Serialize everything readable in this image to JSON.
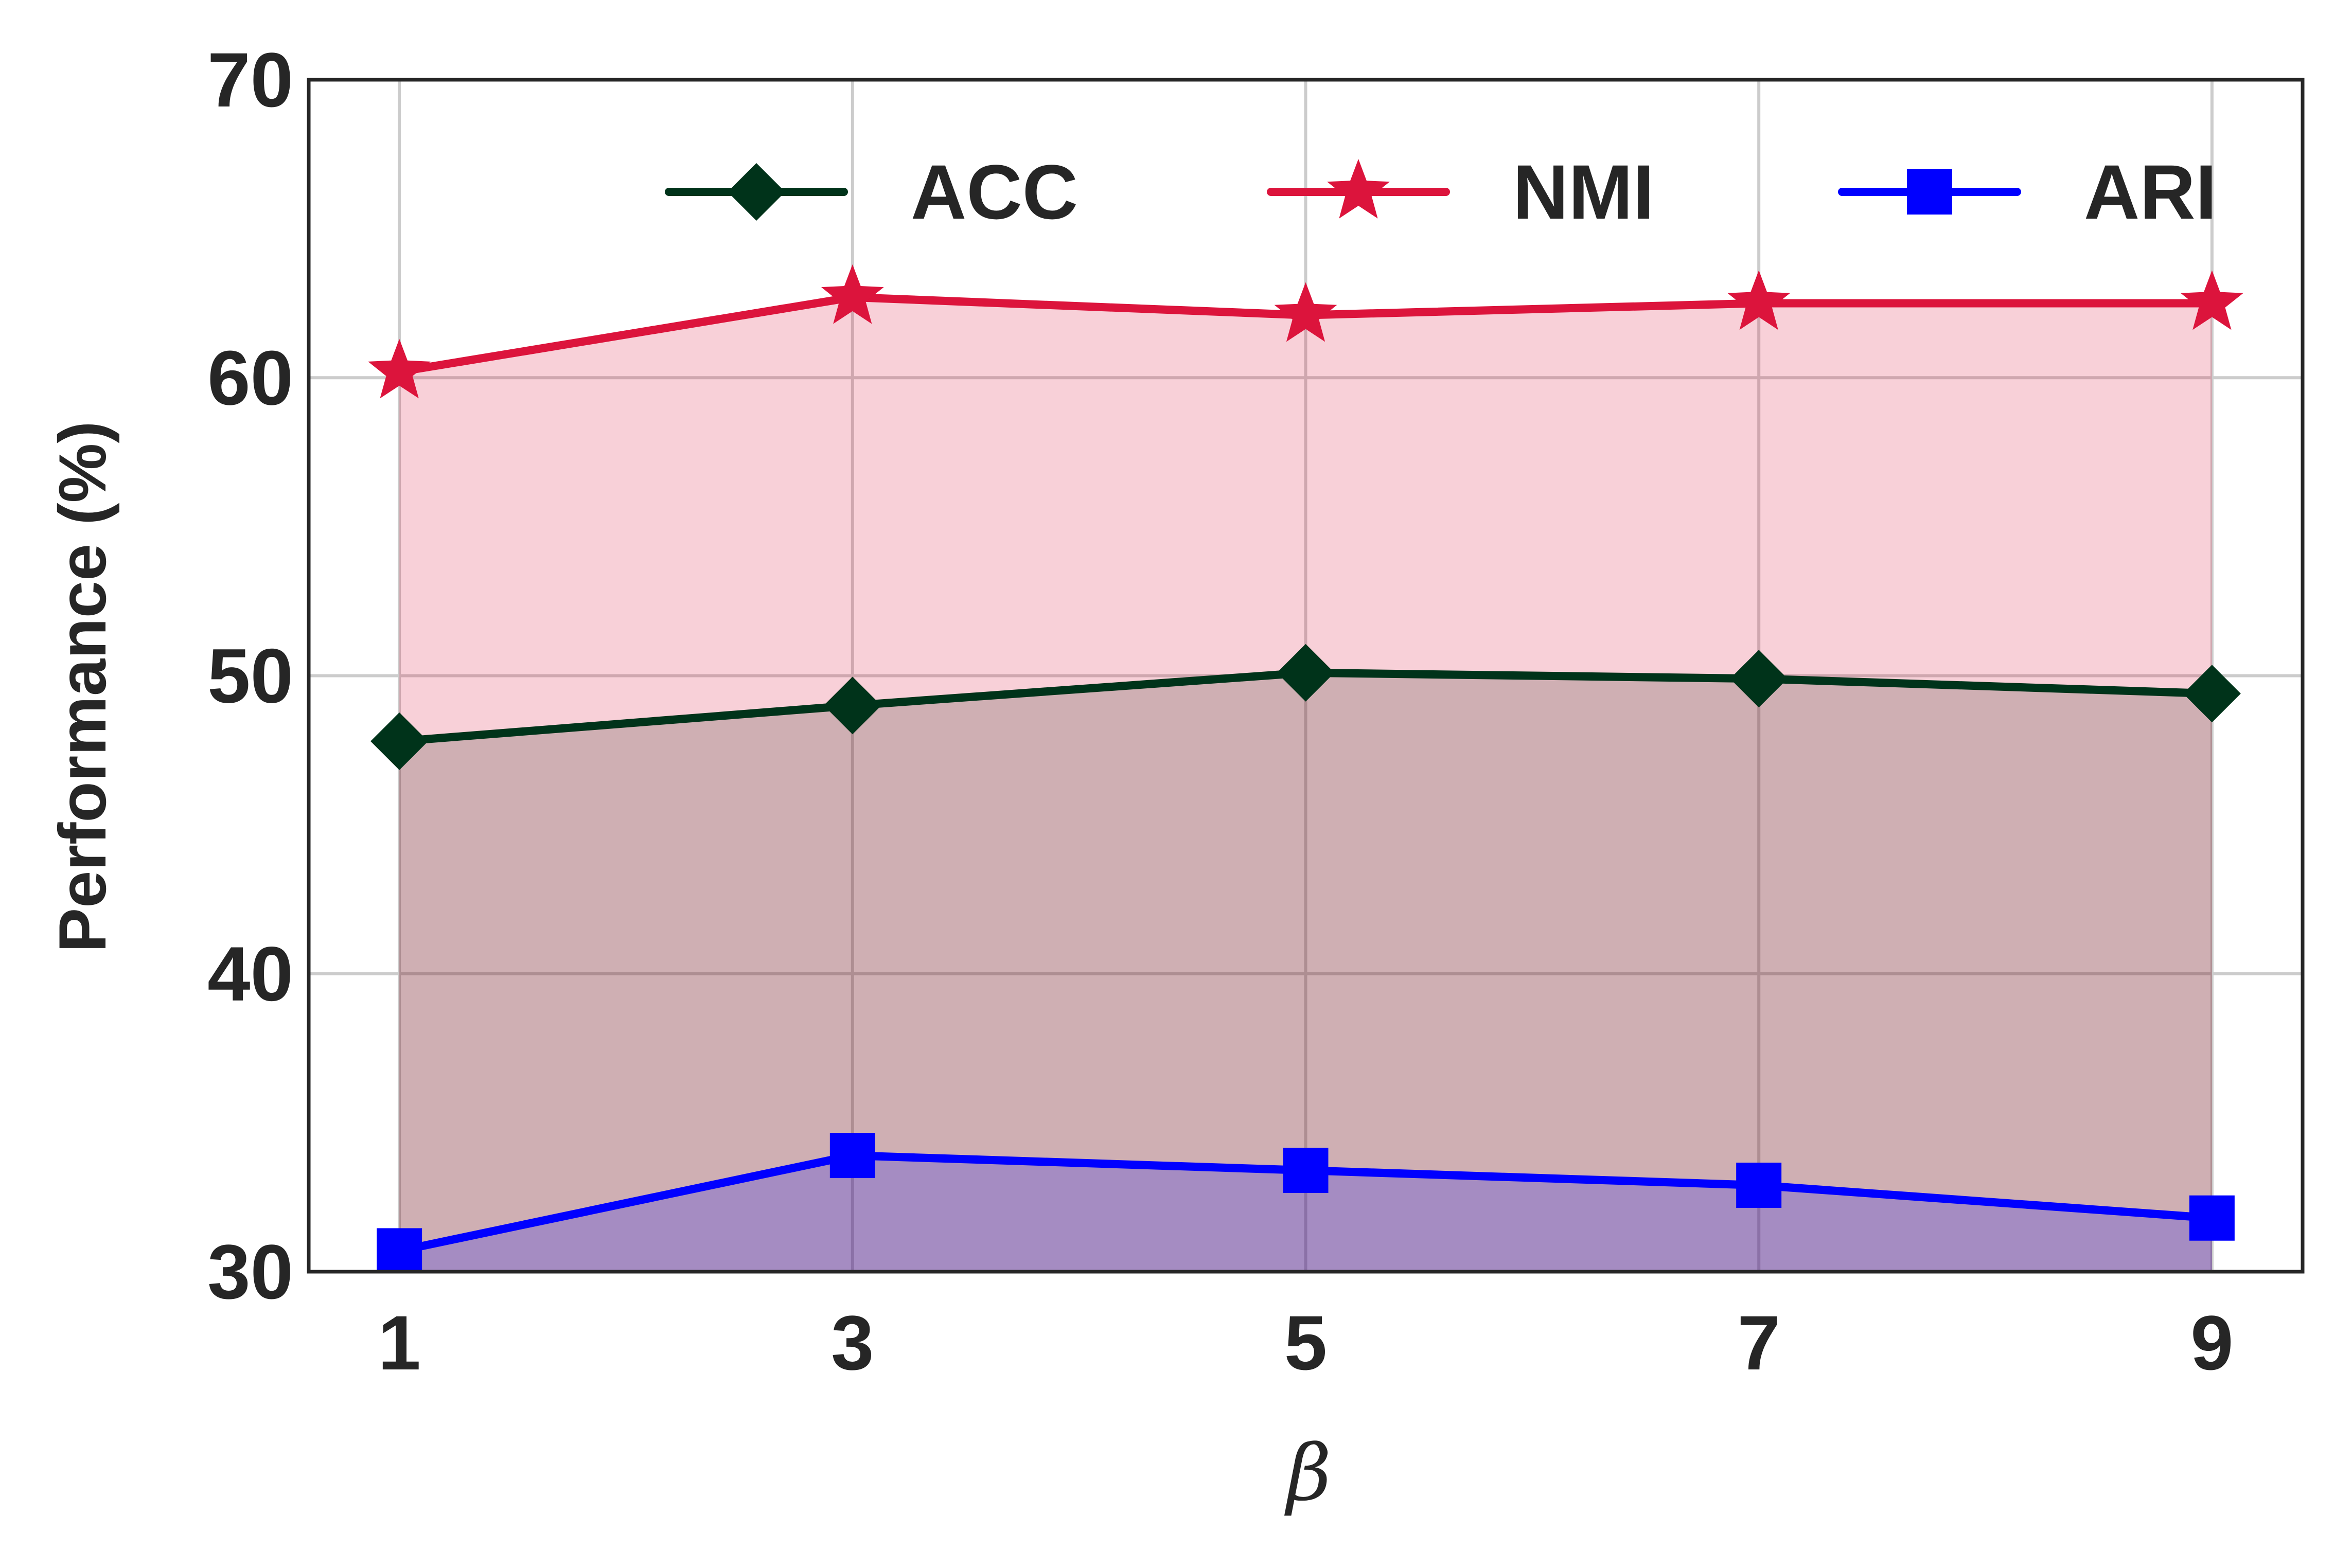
{
  "chart_data": {
    "type": "area",
    "title": "",
    "xlabel": "β",
    "ylabel": "Performance (%)",
    "x": [
      1,
      3,
      5,
      7,
      9
    ],
    "x_ticks": [
      "1",
      "3",
      "5",
      "7",
      "9"
    ],
    "xlim": [
      0.6,
      9.4
    ],
    "ylim": [
      30,
      70
    ],
    "y_ticks": [
      "30",
      "40",
      "50",
      "60",
      "70"
    ],
    "grid": true,
    "legend_position": "top-right",
    "series": [
      {
        "name": "ACC",
        "values": [
          47.8,
          49.0,
          50.1,
          49.9,
          49.4
        ],
        "color": "#00331a",
        "marker": "diamond"
      },
      {
        "name": "NMI",
        "values": [
          60.2,
          62.7,
          62.1,
          62.5,
          62.5
        ],
        "color": "#dc143c",
        "marker": "star"
      },
      {
        "name": "ARI",
        "values": [
          30.7,
          33.9,
          33.4,
          32.9,
          31.8
        ],
        "color": "#0000ff",
        "marker": "square"
      }
    ]
  }
}
